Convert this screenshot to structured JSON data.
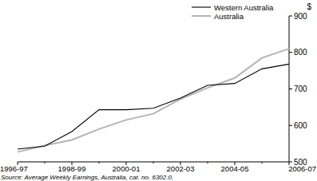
{
  "chart_data": {
    "type": "line",
    "y_label": "$",
    "source": "Source: Average Weekly Earnings, Australia, cat. no. 6302.0.",
    "categories": [
      "1996-97",
      null,
      "1998-99",
      null,
      "2000-01",
      null,
      "2002-03",
      null,
      "2004-05",
      null,
      "2006-07"
    ],
    "series": [
      {
        "name": "Western Australia",
        "color": "#000000",
        "values": [
          535,
          543,
          583,
          643,
          643,
          647,
          675,
          710,
          715,
          755,
          768
        ]
      },
      {
        "name": "Australia",
        "color": "#b4b4b4",
        "values": [
          527,
          545,
          560,
          590,
          615,
          632,
          672,
          703,
          730,
          785,
          810
        ]
      }
    ],
    "ylim": [
      500,
      900
    ],
    "yticks": [
      500,
      600,
      700,
      800,
      900
    ],
    "legend": "upper right",
    "grid": false
  }
}
